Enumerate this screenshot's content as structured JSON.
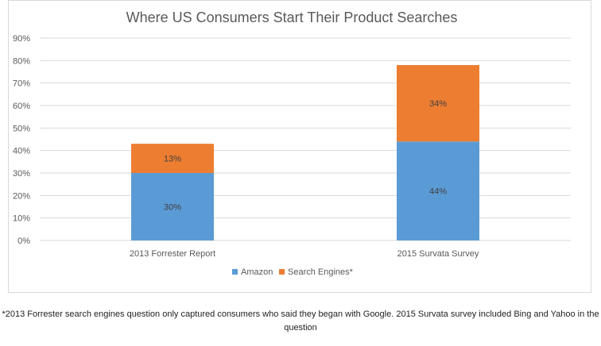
{
  "chart_data": {
    "type": "bar",
    "stacked": true,
    "title": "Where US Consumers Start Their Product Searches",
    "xlabel": "",
    "ylabel": "",
    "categories": [
      "2013 Forrester Report",
      "2015 Survata Survey"
    ],
    "series": [
      {
        "name": "Amazon",
        "color": "#5b9bd5",
        "values": [
          30,
          44
        ],
        "labels": [
          "30%",
          "44%"
        ]
      },
      {
        "name": "Search Engines*",
        "color": "#ed7d31",
        "values": [
          13,
          34
        ],
        "labels": [
          "13%",
          "34%"
        ]
      }
    ],
    "ylim": [
      0,
      90
    ],
    "yticks": [
      "0%",
      "10%",
      "20%",
      "30%",
      "40%",
      "50%",
      "60%",
      "70%",
      "80%",
      "90%"
    ],
    "grid": true,
    "legend_position": "bottom"
  },
  "footnote": "*2013 Forrester search engines question only captured consumers who said they began with Google. 2015 Survata survey included Bing and Yahoo in the question"
}
